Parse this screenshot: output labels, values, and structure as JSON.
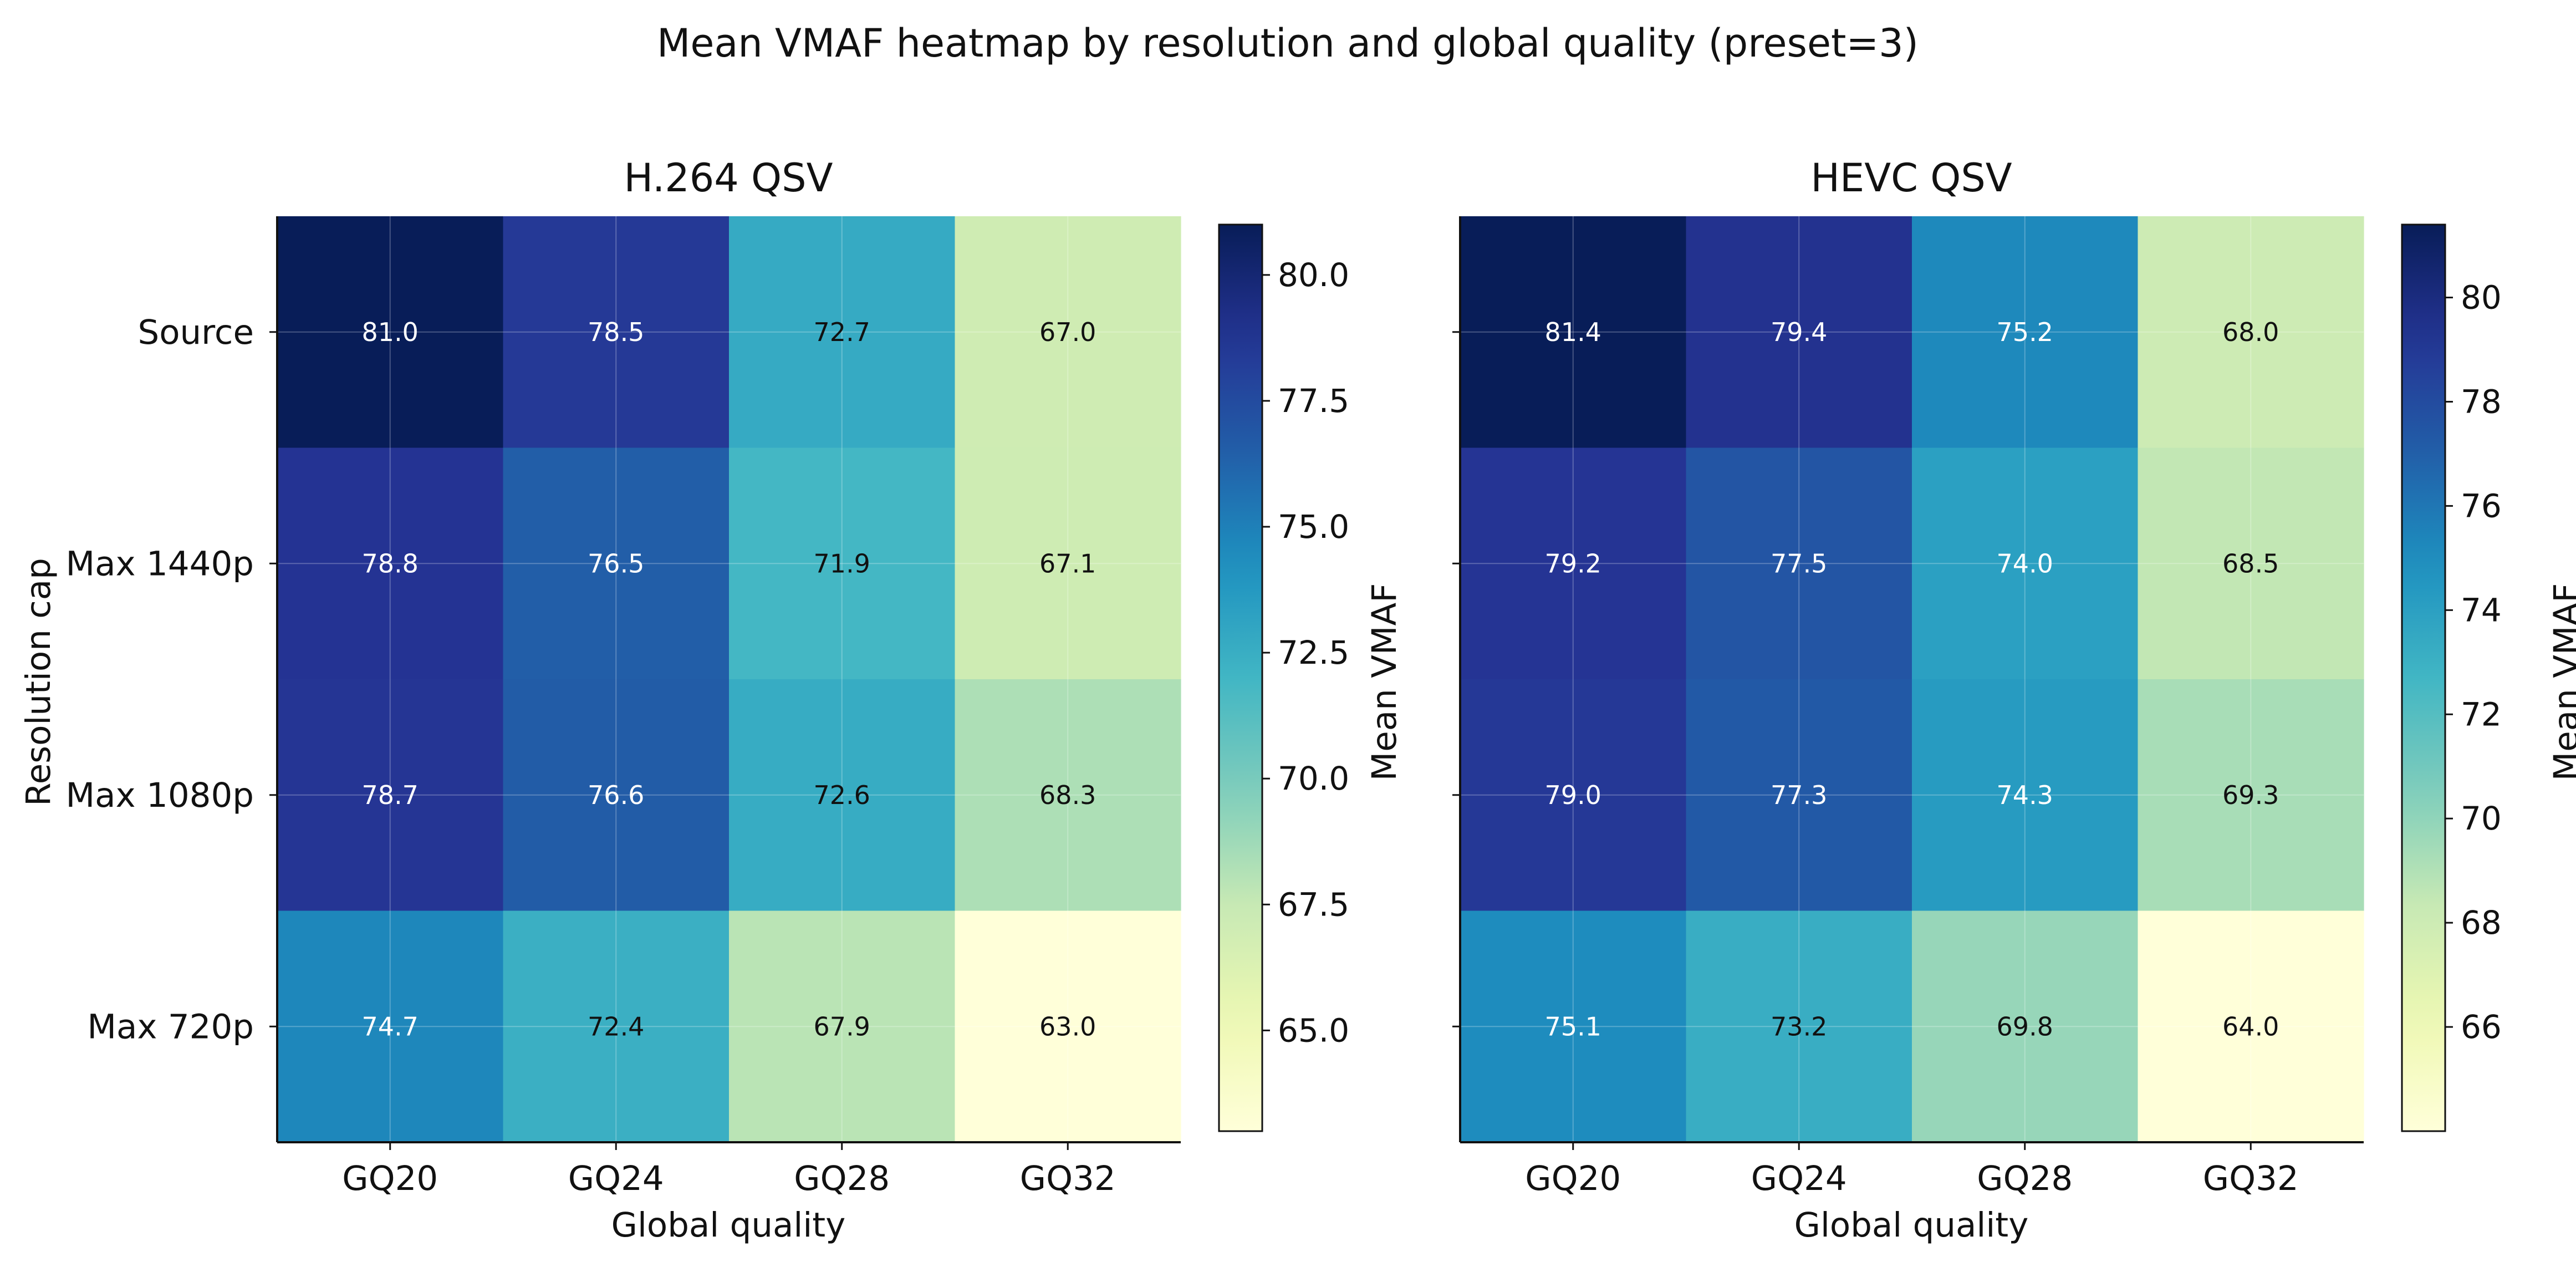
{
  "suptitle": "Mean VMAF heatmap by resolution and global quality (preset=3)",
  "chart_data": [
    {
      "type": "heatmap",
      "title": "H.264 QSV",
      "xlabel": "Global quality",
      "ylabel": "Resolution cap",
      "x_categories": [
        "GQ20",
        "GQ24",
        "GQ28",
        "GQ32"
      ],
      "y_categories": [
        "Source",
        "Max 1440p",
        "Max 1080p",
        "Max 720p"
      ],
      "values": [
        [
          81.0,
          78.5,
          72.7,
          67.0
        ],
        [
          78.8,
          76.5,
          71.9,
          67.1
        ],
        [
          78.7,
          76.6,
          72.6,
          68.3
        ],
        [
          74.7,
          72.4,
          67.9,
          63.0
        ]
      ],
      "value_labels": [
        [
          "81.0",
          "78.5",
          "72.7",
          "67.0"
        ],
        [
          "78.8",
          "76.5",
          "71.9",
          "67.1"
        ],
        [
          "78.7",
          "76.6",
          "72.6",
          "68.3"
        ],
        [
          "74.7",
          "72.4",
          "67.9",
          "63.0"
        ]
      ],
      "colormap": "YlGnBu",
      "colorbar": {
        "label": "Mean VMAF",
        "range": [
          63.0,
          81.0
        ],
        "ticks": [
          65.0,
          67.5,
          70.0,
          72.5,
          75.0,
          77.5,
          80.0
        ],
        "tick_labels": [
          "65.0",
          "67.5",
          "70.0",
          "72.5",
          "75.0",
          "77.5",
          "80.0"
        ]
      },
      "grid": true
    },
    {
      "type": "heatmap",
      "title": "HEVC QSV",
      "xlabel": "Global quality",
      "ylabel": "",
      "x_categories": [
        "GQ20",
        "GQ24",
        "GQ28",
        "GQ32"
      ],
      "y_categories": [
        "Source",
        "Max 1440p",
        "Max 1080p",
        "Max 720p"
      ],
      "values": [
        [
          81.4,
          79.4,
          75.2,
          68.0
        ],
        [
          79.2,
          77.5,
          74.0,
          68.5
        ],
        [
          79.0,
          77.3,
          74.3,
          69.3
        ],
        [
          75.1,
          73.2,
          69.8,
          64.0
        ]
      ],
      "value_labels": [
        [
          "81.4",
          "79.4",
          "75.2",
          "68.0"
        ],
        [
          "79.2",
          "77.5",
          "74.0",
          "68.5"
        ],
        [
          "79.0",
          "77.3",
          "74.3",
          "69.3"
        ],
        [
          "75.1",
          "73.2",
          "69.8",
          "64.0"
        ]
      ],
      "colormap": "YlGnBu",
      "colorbar": {
        "label": "Mean VMAF",
        "range": [
          64.0,
          81.4
        ],
        "ticks": [
          66,
          68,
          70,
          72,
          74,
          76,
          78,
          80
        ],
        "tick_labels": [
          "66",
          "68",
          "70",
          "72",
          "74",
          "76",
          "78",
          "80"
        ]
      },
      "grid": true
    }
  ]
}
